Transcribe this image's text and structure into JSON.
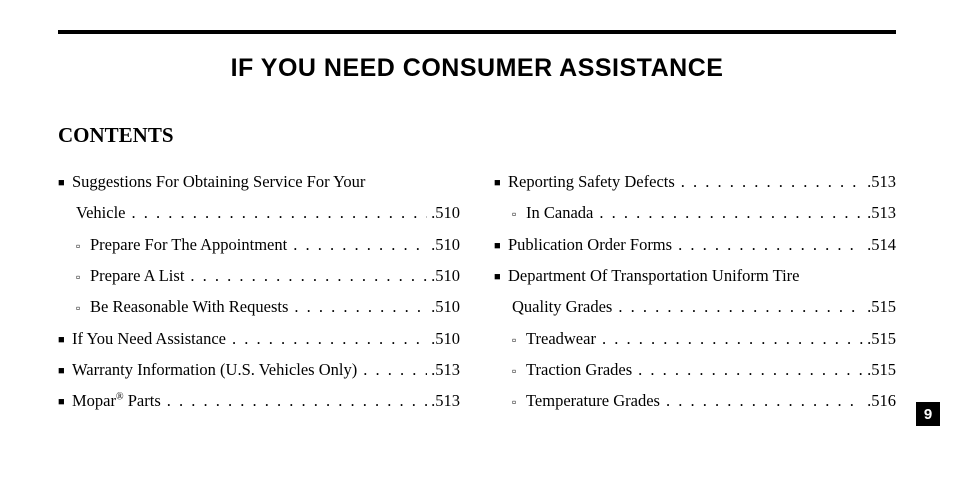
{
  "title": "IF YOU NEED CONSUMER ASSISTANCE",
  "subhead": "CONTENTS",
  "side_tab": "9",
  "bullets": {
    "l1": "■",
    "l2": "▫"
  },
  "left": [
    {
      "level": 1,
      "labelA": "Suggestions For Obtaining Service For Your",
      "labelB": "Vehicle",
      "page": "510"
    },
    {
      "level": 2,
      "label": "Prepare For The Appointment",
      "page": "510"
    },
    {
      "level": 2,
      "label": "Prepare A List",
      "page": "510"
    },
    {
      "level": 2,
      "label": "Be Reasonable With Requests",
      "page": "510"
    },
    {
      "level": 1,
      "label": "If You Need Assistance",
      "page": "510"
    },
    {
      "level": 1,
      "label": "Warranty Information (U.S. Vehicles Only)",
      "page": "513"
    },
    {
      "level": 1,
      "label_html": "Mopar<sup>®</sup> Parts",
      "page": "513"
    }
  ],
  "right": [
    {
      "level": 1,
      "label": "Reporting Safety Defects",
      "page": "513"
    },
    {
      "level": 2,
      "label": "In Canada",
      "page": "513"
    },
    {
      "level": 1,
      "label": "Publication Order Forms",
      "page": "514"
    },
    {
      "level": 1,
      "labelA": "Department Of Transportation Uniform Tire",
      "labelB": "Quality Grades",
      "page": "515"
    },
    {
      "level": 2,
      "label": "Treadwear",
      "page": "515"
    },
    {
      "level": 2,
      "label": "Traction Grades",
      "page": "515"
    },
    {
      "level": 2,
      "label": "Temperature Grades",
      "page": "516"
    }
  ]
}
